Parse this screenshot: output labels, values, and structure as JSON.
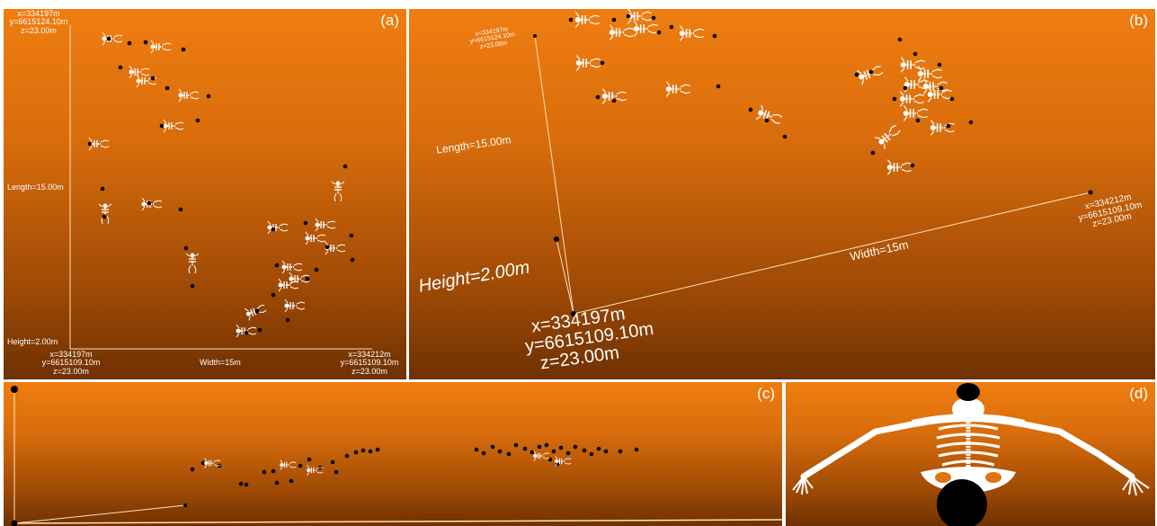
{
  "panel_a": {
    "label": "(a)",
    "corner_top": [
      "x=334197m",
      "y=6615124.10m",
      "z=23.00m"
    ],
    "length_label": "Length=15.00m",
    "height_label": "Height=2.00m",
    "corner_bottom_left": [
      "x=334197m",
      "y=6615109.10m",
      "z=23.00m"
    ],
    "corner_bottom_right": [
      "x=334212m",
      "y=6615109.10m",
      "z=23.00m"
    ],
    "width_label": "Width=15m"
  },
  "panel_b": {
    "label": "(b)",
    "corner_far": [
      "x=334197m",
      "y=6615124.10m",
      "z=23.00m"
    ],
    "length_label": "Length=15.00m",
    "height_label": "Height=2.00m",
    "width_label": "Width=15m",
    "corner_right": [
      "x=334212m",
      "y=6615109.10m",
      "z=23.00m"
    ],
    "corner_near": [
      "x=334197m",
      "y=6615109.10m",
      "z=23.00m"
    ]
  },
  "panel_c": {
    "label": "(c)"
  },
  "panel_d": {
    "label": "(d)"
  },
  "colors": {
    "background_top": "#ef7d10",
    "background_bottom": "#6f3101",
    "marker": "#000000",
    "bones": "#ffffff"
  }
}
